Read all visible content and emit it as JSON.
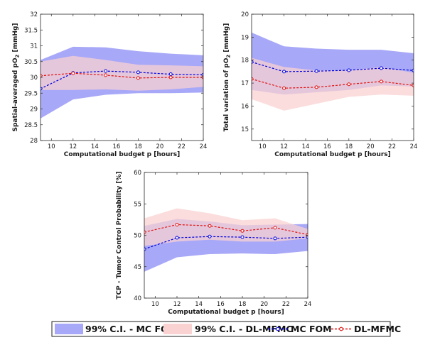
{
  "chart_data": [
    {
      "type": "line",
      "ylabel": "Spatial-averaged pO2 [mmHg]",
      "xlabel": "Computational budget p [hours]",
      "xlim": [
        9,
        24
      ],
      "ylim": [
        28,
        32
      ],
      "xticks": [
        10,
        12,
        14,
        16,
        18,
        20,
        22,
        24
      ],
      "yticks": [
        "28",
        "28.5",
        "29",
        "29.5",
        "30",
        "30.5",
        "31",
        "31.5",
        "32"
      ],
      "grid": false,
      "x": [
        9,
        12,
        15,
        18,
        21,
        24
      ],
      "series": [
        {
          "name": "99% C.I. - MC FOM",
          "kind": "band",
          "color": "#a8a8f8",
          "lower": [
            28.7,
            29.3,
            29.45,
            29.5,
            29.5,
            29.52
          ],
          "upper": [
            30.55,
            30.97,
            30.95,
            30.83,
            30.75,
            30.7
          ]
        },
        {
          "name": "99% C.I. - DL-MFMC",
          "kind": "band",
          "color": "#fad2d2",
          "lower": [
            29.6,
            29.6,
            29.62,
            29.58,
            29.62,
            29.7
          ],
          "upper": [
            30.5,
            30.68,
            30.55,
            30.4,
            30.38,
            30.35
          ]
        },
        {
          "name": "MC FOM",
          "kind": "line",
          "color": "#0000dd",
          "values": [
            29.64,
            30.14,
            30.2,
            30.16,
            30.1,
            30.08
          ]
        },
        {
          "name": "DL-MFMC",
          "kind": "line",
          "color": "#e01010",
          "values": [
            30.05,
            30.13,
            30.07,
            29.98,
            30.0,
            30.0
          ]
        }
      ]
    },
    {
      "type": "line",
      "ylabel": "Total variation of pO2 [mmHg]",
      "xlabel": "Computational budget p [hours]",
      "xlim": [
        9,
        24
      ],
      "ylim": [
        14.5,
        20
      ],
      "xticks": [
        10,
        12,
        14,
        16,
        18,
        20,
        22,
        24
      ],
      "yticks": [
        "15",
        "16",
        "17",
        "18",
        "19",
        "20"
      ],
      "grid": false,
      "x": [
        9,
        12,
        15,
        18,
        21,
        24
      ],
      "series": [
        {
          "name": "99% C.I. - MC FOM",
          "kind": "band",
          "color": "#a8a8f8",
          "lower": [
            16.7,
            16.5,
            16.6,
            16.7,
            16.9,
            16.85
          ],
          "upper": [
            19.2,
            18.6,
            18.5,
            18.45,
            18.45,
            18.3
          ]
        },
        {
          "name": "99% C.I. - DL-MFMC",
          "kind": "band",
          "color": "#fad2d2",
          "lower": [
            16.3,
            15.8,
            16.1,
            16.4,
            16.5,
            16.45
          ],
          "upper": [
            18.1,
            17.7,
            17.55,
            17.55,
            17.7,
            17.45
          ]
        },
        {
          "name": "MC FOM",
          "kind": "line",
          "color": "#0000dd",
          "values": [
            17.92,
            17.5,
            17.52,
            17.56,
            17.65,
            17.55
          ]
        },
        {
          "name": "DL-MFMC",
          "kind": "line",
          "color": "#e01010",
          "values": [
            17.18,
            16.78,
            16.82,
            16.95,
            17.07,
            16.9
          ]
        }
      ]
    },
    {
      "type": "line",
      "ylabel": "TCP - Tumor Control Probability [%]",
      "xlabel": "Computational budget p [hours]",
      "xlim": [
        9,
        24
      ],
      "ylim": [
        40,
        60
      ],
      "xticks": [
        10,
        12,
        14,
        16,
        18,
        20,
        22,
        24
      ],
      "yticks": [
        "40",
        "45",
        "50",
        "55",
        "60"
      ],
      "grid": false,
      "x": [
        9,
        12,
        15,
        18,
        21,
        24
      ],
      "series": [
        {
          "name": "99% C.I. - MC FOM",
          "kind": "band",
          "color": "#a8a8f8",
          "lower": [
            44.2,
            46.5,
            47.0,
            47.1,
            47.0,
            47.5
          ],
          "upper": [
            51.5,
            52.6,
            52.2,
            51.6,
            51.7,
            51.8
          ]
        },
        {
          "name": "99% C.I. - DL-MFMC",
          "kind": "band",
          "color": "#fad2d2",
          "lower": [
            48.3,
            49.0,
            49.3,
            49.0,
            49.0,
            49.5
          ],
          "upper": [
            52.7,
            54.3,
            53.5,
            52.4,
            52.7,
            51.0
          ]
        },
        {
          "name": "MC FOM",
          "kind": "line",
          "color": "#0000dd",
          "values": [
            47.8,
            49.6,
            49.8,
            49.7,
            49.5,
            49.7
          ]
        },
        {
          "name": "DL-MFMC",
          "kind": "line",
          "color": "#e01010",
          "values": [
            50.5,
            51.7,
            51.5,
            50.7,
            51.2,
            50.1
          ]
        }
      ]
    }
  ],
  "legend": {
    "placement": "bottom",
    "items": [
      {
        "label": "99% C.I. - MC FOM",
        "kind": "band",
        "color": "#a8a8f8"
      },
      {
        "label": "99% C.I. - DL-MFMC",
        "kind": "band",
        "color": "#fad2d2"
      },
      {
        "label": "MC FOM",
        "kind": "line",
        "color": "#0000dd"
      },
      {
        "label": "DL-MFMC",
        "kind": "line",
        "color": "#e01010"
      }
    ]
  }
}
